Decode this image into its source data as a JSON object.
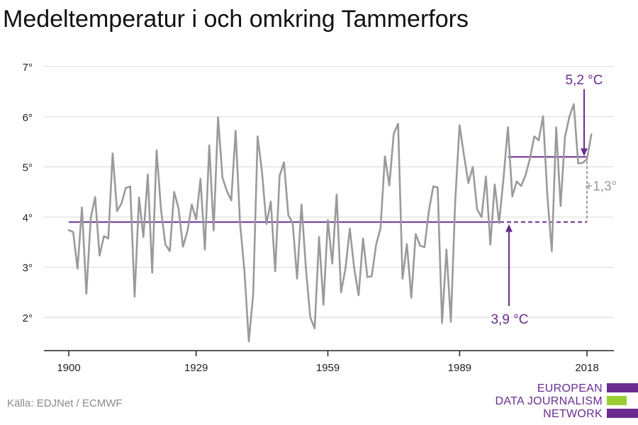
{
  "title": "Medeltemperatur i och omkring Tammerfors",
  "source": "Källa: EDJNet / ECMWF",
  "logo": {
    "lines": [
      "EUROPEAN",
      "DATA JOURNALISM",
      "NETWORK"
    ],
    "colors": [
      "#6a2c91",
      "#9acd32",
      "#6a2c91"
    ]
  },
  "colors": {
    "series": "#9a9a9a",
    "reference": "#6a2c91",
    "difference": "#9a9a9a",
    "grid": "#d9d9d9",
    "axis": "#222222"
  },
  "chart_data": {
    "type": "line",
    "title": "Medeltemperatur i och omkring Tammerfors",
    "xlabel": "",
    "ylabel": "",
    "xlim": [
      1900,
      2018
    ],
    "ylim": [
      1.4,
      7.3
    ],
    "x_ticks": [
      1900,
      1929,
      1959,
      1989,
      2018
    ],
    "y_ticks": [
      2,
      3,
      4,
      5,
      6,
      7
    ],
    "y_tick_labels": [
      "2°",
      "3°",
      "4°",
      "5°",
      "6°",
      "7°"
    ],
    "grid": "horizontal",
    "series": [
      {
        "x": [
          1900,
          1901,
          1902,
          1903,
          1904,
          1905,
          1906,
          1907,
          1908,
          1909,
          1910,
          1911,
          1912,
          1913,
          1914,
          1915,
          1916,
          1917,
          1918,
          1919,
          1920,
          1921,
          1922,
          1923,
          1924,
          1925,
          1926,
          1927,
          1928,
          1929,
          1930,
          1931,
          1932,
          1933,
          1934,
          1935,
          1936,
          1937,
          1938,
          1939,
          1940,
          1941,
          1942,
          1943,
          1944,
          1945,
          1946,
          1947,
          1948,
          1949,
          1950,
          1951,
          1952,
          1953,
          1954,
          1955,
          1956,
          1957,
          1958,
          1959,
          1960,
          1961,
          1962,
          1963,
          1964,
          1965,
          1966,
          1967,
          1968,
          1969,
          1970,
          1971,
          1972,
          1973,
          1974,
          1975,
          1976,
          1977,
          1978,
          1979,
          1980,
          1981,
          1982,
          1983,
          1984,
          1985,
          1986,
          1987,
          1988,
          1989,
          1990,
          1991,
          1992,
          1993,
          1994,
          1995,
          1996,
          1997,
          1998,
          1999,
          2000,
          2001,
          2002,
          2003,
          2004,
          2005,
          2006,
          2007,
          2008,
          2009,
          2010,
          2011,
          2012,
          2013,
          2014,
          2015,
          2016,
          2017,
          2018,
          2019
        ],
        "values": [
          3.74,
          3.7,
          2.97,
          4.19,
          2.47,
          3.98,
          4.4,
          3.23,
          3.62,
          3.57,
          5.27,
          4.12,
          4.27,
          4.58,
          4.61,
          2.41,
          4.39,
          3.6,
          4.85,
          2.89,
          5.33,
          4.15,
          3.45,
          3.32,
          4.5,
          4.17,
          3.41,
          3.71,
          4.25,
          3.95,
          4.76,
          3.35,
          5.43,
          3.73,
          5.99,
          4.79,
          4.52,
          4.33,
          5.72,
          3.88,
          2.93,
          1.52,
          2.47,
          5.61,
          4.9,
          3.86,
          4.31,
          2.92,
          4.82,
          5.09,
          4.04,
          3.88,
          2.77,
          4.25,
          2.98,
          2.0,
          1.78,
          3.6,
          2.25,
          3.94,
          3.07,
          4.45,
          2.5,
          2.97,
          3.77,
          2.97,
          2.44,
          3.57,
          2.8,
          2.82,
          3.45,
          3.78,
          5.21,
          4.63,
          5.66,
          5.86,
          2.77,
          3.46,
          2.39,
          3.66,
          3.43,
          3.4,
          4.12,
          4.61,
          4.59,
          1.89,
          3.35,
          1.91,
          4.33,
          5.83,
          5.23,
          4.68,
          5.0,
          4.15,
          4.0,
          4.81,
          3.45,
          4.65,
          3.88,
          4.78,
          5.79,
          4.41,
          4.71,
          4.62,
          4.83,
          5.16,
          5.61,
          5.53,
          6.01,
          4.41,
          3.32,
          5.79,
          4.22,
          5.6,
          6.0,
          6.25,
          5.07,
          5.08,
          5.15,
          5.65
        ]
      }
    ],
    "reference_line": {
      "value": 3.9,
      "from_year": 1900,
      "to_year": 2018,
      "label": "3,9 °C"
    },
    "recent_line": {
      "value": 5.2,
      "from_year": 2000,
      "to_year": 2018,
      "label": "5,2 °C"
    },
    "difference_label": "+1,3°"
  }
}
